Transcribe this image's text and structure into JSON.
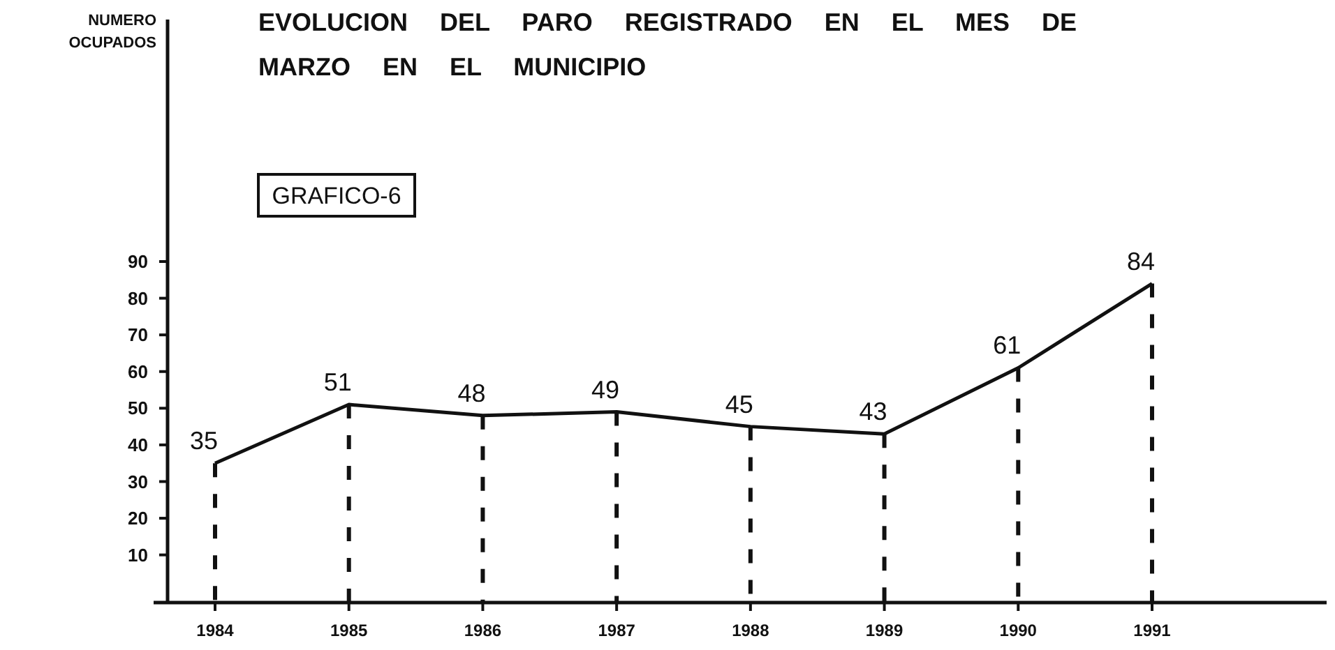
{
  "chart_data": {
    "type": "line",
    "title": "EVOLUCION DEL PARO REGISTRADO EN EL MES DE MARZO EN EL MUNICIPIO",
    "ylabel": "NUMERO OCUPADOS",
    "categories": [
      "1984",
      "1985",
      "1986",
      "1987",
      "1988",
      "1989",
      "1990",
      "1991"
    ],
    "values": [
      35,
      51,
      48,
      49,
      45,
      43,
      61,
      84
    ],
    "color": "#111111",
    "ylim": [
      -3,
      156
    ],
    "yticks": [
      10,
      20,
      30,
      40,
      50,
      60,
      70,
      80,
      90
    ],
    "data_labels": true,
    "marker": "none",
    "line_style": "solid",
    "annotations": [
      "GRAFICO-6"
    ]
  }
}
